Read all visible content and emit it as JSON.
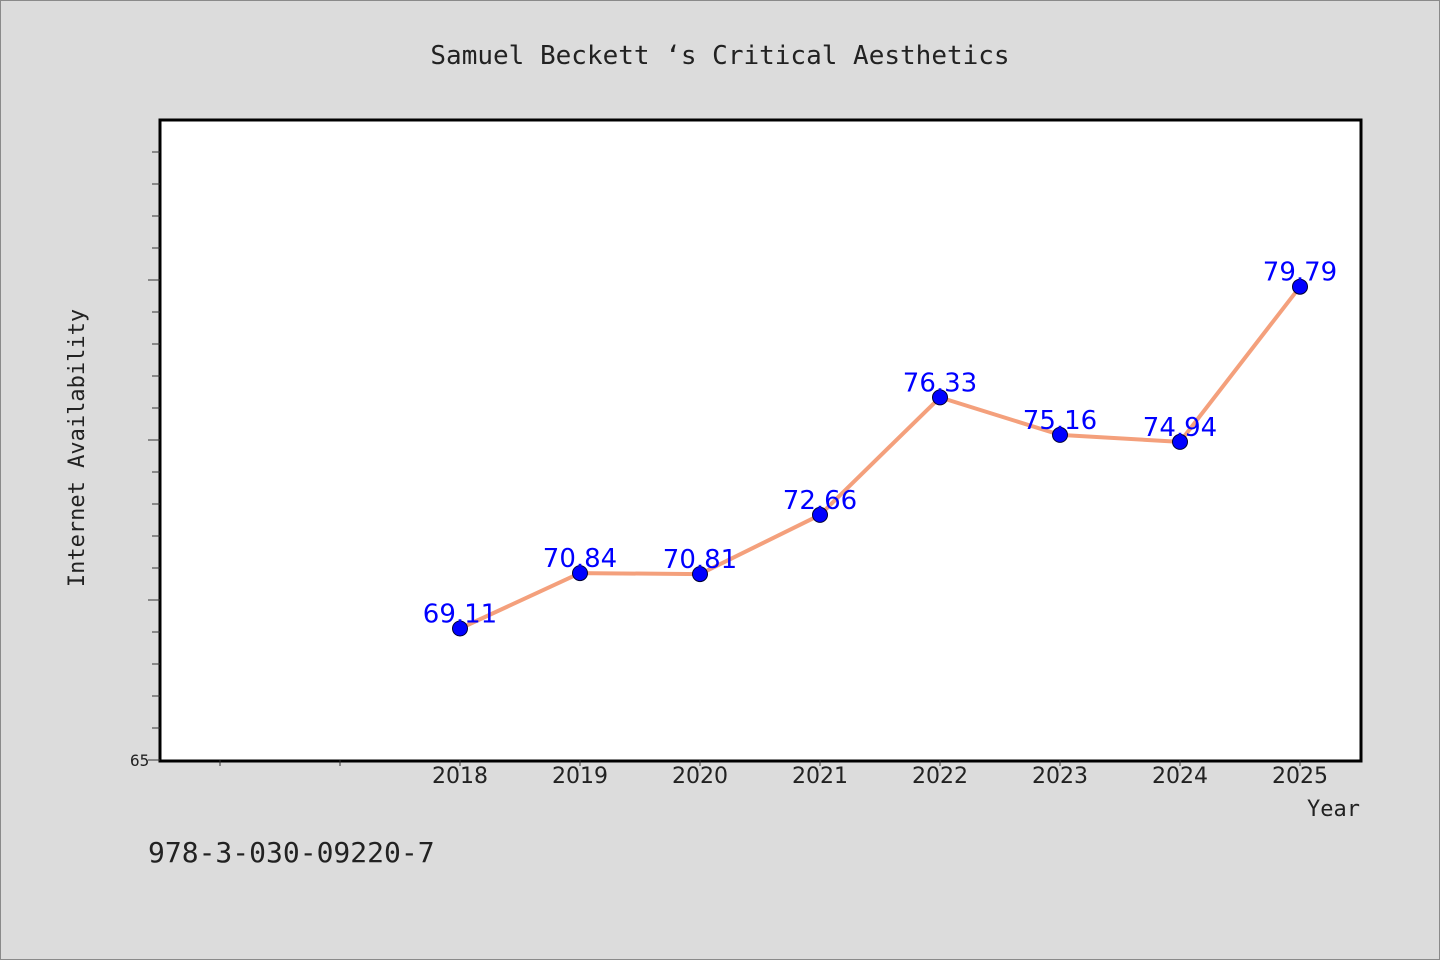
{
  "chart_data": {
    "type": "line",
    "title": "Samuel Beckett ‘s Critical Aesthetics",
    "xlabel": "Year",
    "ylabel": "Internet Availability",
    "x": [
      "2018",
      "2019",
      "2020",
      "2021",
      "2022",
      "2023",
      "2024",
      "2025"
    ],
    "series": [
      {
        "values": [
          69.11,
          70.84,
          70.81,
          72.66,
          76.33,
          75.16,
          74.94,
          79.79
        ]
      }
    ],
    "data_labels": [
      "69.11",
      "70.84",
      "70.81",
      "72.66",
      "76.33",
      "75.16",
      "74.94",
      "79.79"
    ],
    "y_tick_label": "65",
    "ylim": [
      65,
      85
    ],
    "grid": false,
    "legend": "none",
    "colors": {
      "background": "#dcdcdc",
      "plot_background": "#ffffff",
      "line": "#f4a07c",
      "marker": "#0000ff",
      "data_label": "#0000ff",
      "text": "#222222"
    }
  },
  "footer": {
    "isbn": "978-3-030-09220-7"
  }
}
